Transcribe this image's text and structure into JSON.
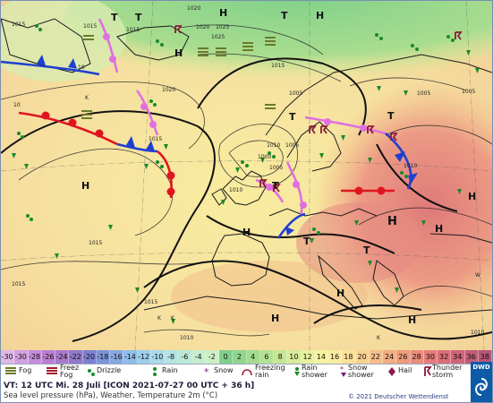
{
  "map": {
    "pressure_centres": [
      {
        "type": "H",
        "label": "H"
      },
      {
        "type": "H",
        "label": "H"
      },
      {
        "type": "H",
        "label": "H"
      },
      {
        "type": "H",
        "label": "H"
      },
      {
        "type": "H",
        "label": "H"
      },
      {
        "type": "H",
        "label": "H"
      },
      {
        "type": "H",
        "label": "H"
      },
      {
        "type": "H",
        "label": "H"
      },
      {
        "type": "H",
        "label": "H"
      },
      {
        "type": "H",
        "label": "H"
      },
      {
        "type": "H",
        "label": "H"
      },
      {
        "type": "T",
        "label": "T"
      },
      {
        "type": "T",
        "label": "T"
      },
      {
        "type": "T",
        "label": "T"
      },
      {
        "type": "T",
        "label": "T"
      },
      {
        "type": "T",
        "label": "T"
      },
      {
        "type": "T",
        "label": "T"
      },
      {
        "type": "T",
        "label": "T"
      },
      {
        "type": "T",
        "label": "T"
      }
    ],
    "isobar_labels": [
      "1020",
      "1015",
      "1015",
      "1020",
      "1025",
      "1015",
      "1025",
      "1015",
      "1015",
      "1020",
      "1005",
      "1005",
      "1005",
      "1010",
      "1005",
      "1010",
      "1000",
      "1005",
      "1010",
      "1015",
      "1015",
      "1010",
      "1010",
      "1015"
    ],
    "small_labels": [
      "10",
      "10",
      "K",
      "K",
      "K",
      "K",
      "W"
    ]
  },
  "temperature_scale": {
    "unit": "°C",
    "steps": [
      {
        "label": "-30",
        "color": "#e0b8e8"
      },
      {
        "label": "-30",
        "color": "#d3a1e0"
      },
      {
        "label": "-28",
        "color": "#c58cd8"
      },
      {
        "label": "-26",
        "color": "#b97ed2"
      },
      {
        "label": "-24",
        "color": "#a87acc"
      },
      {
        "label": "-22",
        "color": "#9079c9"
      },
      {
        "label": "-20",
        "color": "#7c80d0"
      },
      {
        "label": "-18",
        "color": "#7b95d9"
      },
      {
        "label": "-16",
        "color": "#86a9e0"
      },
      {
        "label": "-14",
        "color": "#90bde6"
      },
      {
        "label": "-12",
        "color": "#9dcfeb"
      },
      {
        "label": "-10",
        "color": "#a9dbe9"
      },
      {
        "label": "-8",
        "color": "#b3e3e2"
      },
      {
        "label": "-6",
        "color": "#bde8d8"
      },
      {
        "label": "-4",
        "color": "#c6ecce"
      },
      {
        "label": "-2",
        "color": "#cdefc6"
      },
      {
        "label": "0",
        "color": "#7fcf8b"
      },
      {
        "label": "2",
        "color": "#90d68d"
      },
      {
        "label": "4",
        "color": "#a3dc8f"
      },
      {
        "label": "6",
        "color": "#b5e192"
      },
      {
        "label": "8",
        "color": "#c7e695"
      },
      {
        "label": "10",
        "color": "#d9eb98"
      },
      {
        "label": "12",
        "color": "#e9f09b"
      },
      {
        "label": "14",
        "color": "#f6f3a0"
      },
      {
        "label": "16",
        "color": "#faeca0"
      },
      {
        "label": "18",
        "color": "#fbe098"
      },
      {
        "label": "20",
        "color": "#f9d190"
      },
      {
        "label": "22",
        "color": "#f6bf88"
      },
      {
        "label": "24",
        "color": "#f2ad82"
      },
      {
        "label": "26",
        "color": "#ee9c7e"
      },
      {
        "label": "28",
        "color": "#e98c7c"
      },
      {
        "label": "30",
        "color": "#e37c7b"
      },
      {
        "label": "32",
        "color": "#da6e78"
      },
      {
        "label": "34",
        "color": "#cf6477"
      },
      {
        "label": "36",
        "color": "#c45c78"
      },
      {
        "label": "38",
        "color": "#b85479"
      }
    ]
  },
  "weather_legend": [
    {
      "icon": "fog-icon",
      "label": "Fog"
    },
    {
      "icon": "freezing-fog-icon",
      "label": "Freez Fog"
    },
    {
      "icon": "drizzle-icon",
      "label": "Drizzle"
    },
    {
      "icon": "rain-icon",
      "label": "Rain"
    },
    {
      "icon": "snow-icon",
      "label": "Snow"
    },
    {
      "icon": "freezing-rain-icon",
      "label": "Freezing rain"
    },
    {
      "icon": "rain-shower-icon",
      "label": "Rain shower"
    },
    {
      "icon": "snow-shower-icon",
      "label": "Snow shower"
    },
    {
      "icon": "hail-icon",
      "label": "Hail"
    },
    {
      "icon": "thunderstorm-icon",
      "label": "Thunder storm"
    }
  ],
  "footer": {
    "valid_time": "VT: 12 UTC Mi.  28 Juli [ICON 2021-07-27  00 UTC + 36 h]",
    "description": "Sea level pressure (hPa), Weather, Temperature 2m (°C)",
    "copyright": "© 2021 Deutscher Wetterdienst",
    "logo_text": "DWD"
  },
  "colors": {
    "cold_front": "#1f3fd0",
    "warm_front": "#e0141e",
    "occlusion": "#e070e0",
    "weather_green": "#1a8a2a"
  }
}
